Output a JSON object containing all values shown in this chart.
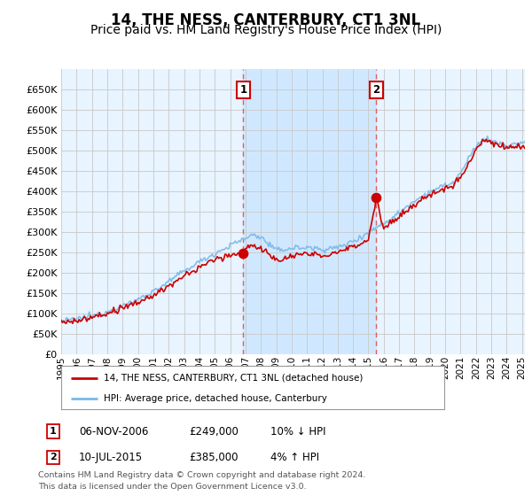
{
  "title": "14, THE NESS, CANTERBURY, CT1 3NL",
  "subtitle": "Price paid vs. HM Land Registry's House Price Index (HPI)",
  "ylim": [
    0,
    680000
  ],
  "yticks": [
    0,
    50000,
    100000,
    150000,
    200000,
    250000,
    300000,
    350000,
    400000,
    450000,
    500000,
    550000,
    600000,
    650000
  ],
  "xlim_start": 1995.0,
  "xlim_end": 2025.2,
  "sale1_date": 2006.85,
  "sale1_price": 249000,
  "sale1_label": "1",
  "sale1_text": "06-NOV-2006",
  "sale1_amount": "£249,000",
  "sale1_hpi": "10% ↓ HPI",
  "sale2_date": 2015.52,
  "sale2_price": 385000,
  "sale2_label": "2",
  "sale2_text": "10-JUL-2015",
  "sale2_amount": "£385,000",
  "sale2_hpi": "4% ↑ HPI",
  "hpi_color": "#7ab8e8",
  "price_color": "#cc0000",
  "marker_box_color": "#cc0000",
  "vline_color": "#e06060",
  "bg_color": "#e8f4ff",
  "span_color": "#d0e8ff",
  "grid_color": "#c8c8c8",
  "legend1": "14, THE NESS, CANTERBURY, CT1 3NL (detached house)",
  "legend2": "HPI: Average price, detached house, Canterbury",
  "footnote1": "Contains HM Land Registry data © Crown copyright and database right 2024.",
  "footnote2": "This data is licensed under the Open Government Licence v3.0.",
  "title_fontsize": 12,
  "subtitle_fontsize": 10,
  "xtick_years": [
    1995,
    1996,
    1997,
    1998,
    1999,
    2000,
    2001,
    2002,
    2003,
    2004,
    2005,
    2006,
    2007,
    2008,
    2009,
    2010,
    2011,
    2012,
    2013,
    2014,
    2015,
    2016,
    2017,
    2018,
    2019,
    2020,
    2021,
    2022,
    2023,
    2024,
    2025
  ]
}
